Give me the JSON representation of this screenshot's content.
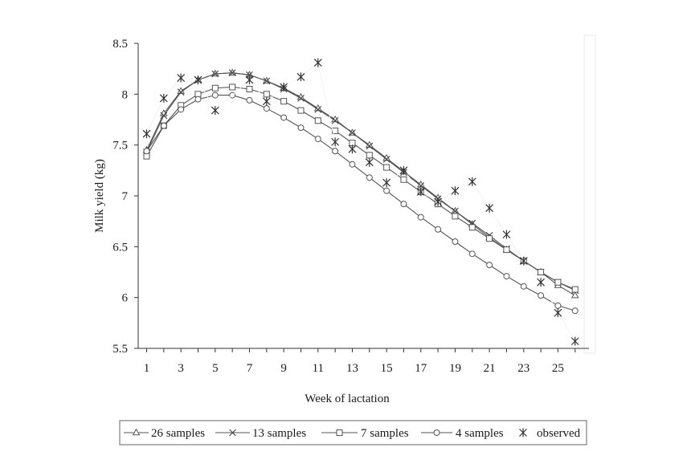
{
  "chart_data": {
    "type": "line",
    "title": "",
    "xlabel": "Week of lactation",
    "ylabel": "Milk yield (kg)",
    "xlim": [
      0.5,
      26.5
    ],
    "ylim": [
      5.5,
      8.5
    ],
    "x_ticks": [
      1,
      3,
      5,
      7,
      9,
      11,
      13,
      15,
      17,
      19,
      21,
      23,
      25
    ],
    "y_ticks": [
      5.5,
      6,
      6.5,
      7,
      7.5,
      8,
      8.5
    ],
    "x_tick_labels": [
      "1",
      "3",
      "5",
      "7",
      "9",
      "11",
      "13",
      "15",
      "17",
      "19",
      "21",
      "23",
      "25"
    ],
    "y_tick_labels": [
      "5.5",
      "6",
      "6.5",
      "7",
      "7.5",
      "8",
      "8.5"
    ],
    "x": [
      1,
      2,
      3,
      4,
      5,
      6,
      7,
      8,
      9,
      10,
      11,
      12,
      13,
      14,
      15,
      16,
      17,
      18,
      19,
      20,
      21,
      22,
      23,
      24,
      25,
      26
    ],
    "series": [
      {
        "name": "26 samples",
        "marker": "triangle",
        "values": [
          7.45,
          7.81,
          8.03,
          8.14,
          8.2,
          8.21,
          8.19,
          8.13,
          8.06,
          7.97,
          7.86,
          7.75,
          7.62,
          7.5,
          7.37,
          7.24,
          7.11,
          6.98,
          6.85,
          6.72,
          6.59,
          6.47,
          6.36,
          6.25,
          6.12,
          6.02
        ]
      },
      {
        "name": "13 samples",
        "marker": "x",
        "values": [
          7.43,
          7.79,
          8.02,
          8.14,
          8.2,
          8.21,
          8.19,
          8.13,
          8.05,
          7.96,
          7.85,
          7.74,
          7.62,
          7.49,
          7.36,
          7.23,
          7.1,
          6.97,
          6.85,
          6.73,
          6.61,
          6.48,
          6.36,
          6.25,
          6.15,
          6.07
        ]
      },
      {
        "name": "7 samples",
        "marker": "square",
        "values": [
          7.39,
          7.69,
          7.89,
          8.0,
          8.06,
          8.07,
          8.05,
          8.0,
          7.93,
          7.84,
          7.74,
          7.64,
          7.52,
          7.4,
          7.28,
          7.16,
          7.04,
          6.92,
          6.8,
          6.69,
          6.58,
          6.47,
          6.36,
          6.25,
          6.15,
          6.08
        ]
      },
      {
        "name": "4 samples",
        "marker": "circle",
        "values": [
          7.44,
          7.69,
          7.85,
          7.95,
          7.99,
          7.99,
          7.94,
          7.86,
          7.77,
          7.67,
          7.56,
          7.44,
          7.31,
          7.18,
          7.05,
          6.92,
          6.79,
          6.67,
          6.55,
          6.43,
          6.32,
          6.21,
          6.11,
          6.02,
          5.92,
          5.87
        ]
      },
      {
        "name": "observed",
        "marker": "asterisk",
        "values": [
          7.61,
          7.96,
          8.16,
          8.14,
          7.84,
          null,
          8.14,
          7.93,
          8.07,
          8.17,
          8.31,
          7.53,
          7.46,
          7.33,
          7.13,
          7.25,
          7.04,
          6.94,
          7.05,
          7.14,
          6.88,
          6.62,
          6.36,
          6.15,
          5.85,
          5.57
        ]
      }
    ],
    "legend": {
      "placement": "bottom",
      "items": [
        "26 samples",
        "13 samples",
        "7 samples",
        "4 samples",
        "observed"
      ]
    },
    "grid": false
  }
}
